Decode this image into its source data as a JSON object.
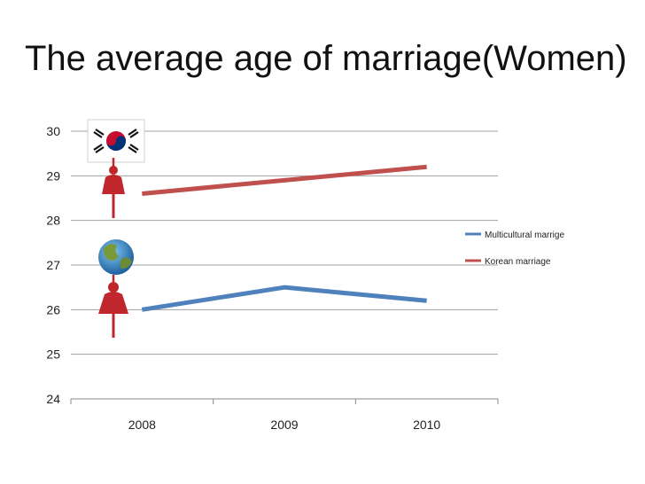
{
  "title": "The average age of marriage(Women)",
  "chart_data": {
    "type": "line",
    "title": "The average age of marriage(Women)",
    "categories": [
      "2008",
      "2009",
      "2010"
    ],
    "series": [
      {
        "name": "Multicultural marrige",
        "values": [
          26.0,
          26.5,
          26.2
        ],
        "color": "#4f81bd"
      },
      {
        "name": "Korean marriage",
        "values": [
          28.6,
          28.9,
          29.2
        ],
        "color": "#c0504d"
      }
    ],
    "yticks": [
      "24",
      "25",
      "26",
      "27",
      "28",
      "29",
      "30"
    ],
    "ylim": [
      24,
      30
    ],
    "grid": true,
    "legend_position": "right",
    "icons": [
      "korea-flag-icon",
      "woman-icon",
      "globe-icon",
      "woman-icon"
    ]
  }
}
